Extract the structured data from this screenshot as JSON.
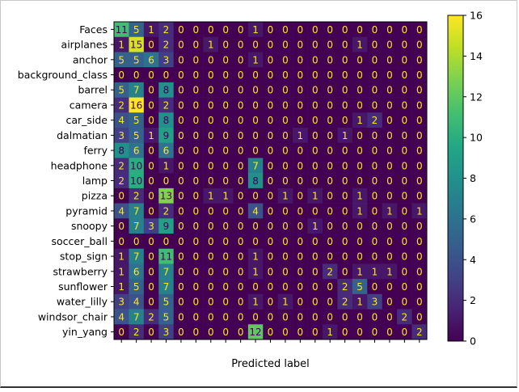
{
  "chart_data": {
    "type": "heatmap",
    "title": "",
    "xlabel": "Predicted label",
    "ylabel": "",
    "rows": [
      "Faces",
      "airplanes",
      "anchor",
      "background_class",
      "barrel",
      "camera",
      "car_side",
      "dalmatian",
      "ferry",
      "headphone",
      "lamp",
      "pizza",
      "pyramid",
      "snoopy",
      "soccer_ball",
      "stop_sign",
      "strawberry",
      "sunflower",
      "water_lilly",
      "windsor_chair",
      "yin_yang"
    ],
    "x_tick_labels": [],
    "values": [
      [
        11,
        5,
        1,
        2,
        0,
        0,
        0,
        0,
        0,
        1,
        0,
        0,
        0,
        0,
        0,
        0,
        0,
        0,
        0,
        0,
        0
      ],
      [
        1,
        15,
        0,
        2,
        0,
        0,
        1,
        0,
        0,
        0,
        0,
        0,
        0,
        0,
        0,
        0,
        1,
        0,
        0,
        0,
        0
      ],
      [
        5,
        5,
        6,
        3,
        0,
        0,
        0,
        0,
        0,
        1,
        0,
        0,
        0,
        0,
        0,
        0,
        0,
        0,
        0,
        0,
        0
      ],
      [
        0,
        0,
        0,
        0,
        0,
        0,
        0,
        0,
        0,
        0,
        0,
        0,
        0,
        0,
        0,
        0,
        0,
        0,
        0,
        0,
        0
      ],
      [
        5,
        7,
        0,
        8,
        0,
        0,
        0,
        0,
        0,
        0,
        0,
        0,
        0,
        0,
        0,
        0,
        0,
        0,
        0,
        0,
        0
      ],
      [
        2,
        16,
        0,
        2,
        0,
        0,
        0,
        0,
        0,
        0,
        0,
        0,
        0,
        0,
        0,
        0,
        0,
        0,
        0,
        0,
        0
      ],
      [
        4,
        5,
        0,
        8,
        0,
        0,
        0,
        0,
        0,
        0,
        0,
        0,
        0,
        0,
        0,
        0,
        1,
        2,
        0,
        0,
        0
      ],
      [
        3,
        5,
        1,
        9,
        0,
        0,
        0,
        0,
        0,
        0,
        0,
        0,
        1,
        0,
        0,
        1,
        0,
        0,
        0,
        0,
        0
      ],
      [
        8,
        6,
        0,
        6,
        0,
        0,
        0,
        0,
        0,
        0,
        0,
        0,
        0,
        0,
        0,
        0,
        0,
        0,
        0,
        0,
        0
      ],
      [
        2,
        10,
        0,
        1,
        0,
        0,
        0,
        0,
        0,
        7,
        0,
        0,
        0,
        0,
        0,
        0,
        0,
        0,
        0,
        0,
        0
      ],
      [
        2,
        10,
        0,
        0,
        0,
        0,
        0,
        0,
        0,
        8,
        0,
        0,
        0,
        0,
        0,
        0,
        0,
        0,
        0,
        0,
        0
      ],
      [
        0,
        2,
        0,
        13,
        0,
        0,
        1,
        1,
        0,
        0,
        0,
        1,
        0,
        1,
        0,
        0,
        1,
        0,
        0,
        0,
        0
      ],
      [
        4,
        7,
        0,
        2,
        0,
        0,
        0,
        0,
        0,
        4,
        0,
        0,
        0,
        0,
        0,
        0,
        1,
        0,
        1,
        0,
        1
      ],
      [
        0,
        7,
        3,
        9,
        0,
        0,
        0,
        0,
        0,
        0,
        0,
        0,
        0,
        1,
        0,
        0,
        0,
        0,
        0,
        0,
        0
      ],
      [
        0,
        0,
        0,
        0,
        0,
        0,
        0,
        0,
        0,
        0,
        0,
        0,
        0,
        0,
        0,
        0,
        0,
        0,
        0,
        0,
        0
      ],
      [
        1,
        7,
        0,
        11,
        0,
        0,
        0,
        0,
        0,
        1,
        0,
        0,
        0,
        0,
        0,
        0,
        0,
        0,
        0,
        0,
        0
      ],
      [
        1,
        6,
        0,
        7,
        0,
        0,
        0,
        0,
        0,
        1,
        0,
        0,
        0,
        0,
        2,
        0,
        1,
        1,
        1,
        0,
        0
      ],
      [
        1,
        5,
        0,
        7,
        0,
        0,
        0,
        0,
        0,
        0,
        0,
        0,
        0,
        0,
        0,
        2,
        5,
        0,
        0,
        0,
        0
      ],
      [
        3,
        4,
        0,
        5,
        0,
        0,
        0,
        0,
        0,
        1,
        0,
        1,
        0,
        0,
        0,
        2,
        1,
        3,
        0,
        0,
        0
      ],
      [
        4,
        7,
        2,
        5,
        0,
        0,
        0,
        0,
        0,
        0,
        0,
        0,
        0,
        0,
        0,
        0,
        0,
        0,
        0,
        2,
        0
      ],
      [
        0,
        2,
        0,
        3,
        0,
        0,
        0,
        0,
        0,
        12,
        0,
        0,
        0,
        0,
        1,
        0,
        0,
        0,
        0,
        0,
        2
      ]
    ],
    "vmin": 0,
    "vmax": 16,
    "colormap": "viridis",
    "colorbar_ticks": [
      "0",
      "2",
      "4",
      "6",
      "8",
      "10",
      "12",
      "14",
      "16"
    ],
    "text_color_low": "#fde725",
    "text_color_high": "#440154"
  }
}
